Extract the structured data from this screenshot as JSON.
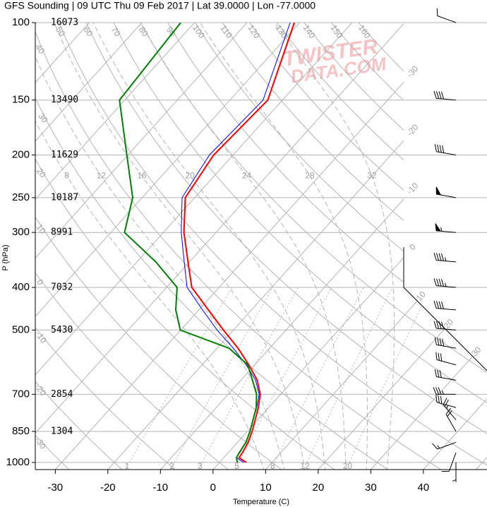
{
  "chart_data": {
    "type": "skew-t",
    "title": "GFS Sounding | 09 UTC Thu 09 Feb 2017 | Lat 39.0000 | Lon -77.0000",
    "x_label": "Temperature (C)",
    "y_label": "P (hPa)",
    "xlim": [
      -33.8,
      52.1
    ],
    "xticks": [
      -30,
      -20,
      -10,
      0,
      10,
      20,
      30,
      40
    ],
    "ylim": [
      1038,
      100
    ],
    "yticks": [
      100,
      150,
      200,
      250,
      300,
      400,
      500,
      700,
      850,
      1000
    ],
    "log_y": true,
    "heights": [
      {
        "pressure": 100,
        "height": 16073
      },
      {
        "pressure": 150,
        "height": 13490
      },
      {
        "pressure": 200,
        "height": 11629
      },
      {
        "pressure": 250,
        "height": 10187
      },
      {
        "pressure": 300,
        "height": 8991
      },
      {
        "pressure": 400,
        "height": 7032
      },
      {
        "pressure": 500,
        "height": 5430
      },
      {
        "pressure": 700,
        "height": 2854
      },
      {
        "pressure": 850,
        "height": 1304
      }
    ],
    "pressure": [
      1000,
      975,
      950,
      900,
      850,
      800,
      750,
      700,
      650,
      600,
      550,
      500,
      450,
      400,
      350,
      300,
      250,
      200,
      150,
      100
    ],
    "series": [
      {
        "color": "#0000ff",
        "values": [
          4.6,
          2.4,
          2.2,
          1.6,
          0.5,
          -0.9,
          -2.3,
          -4.1,
          -7.2,
          -11.6,
          -16.9,
          -23.1,
          -29.3,
          -36.1,
          -41.0,
          -46.6,
          -52.4,
          -54.5,
          -53.7,
          -61.8
        ]
      },
      {
        "color": "#ff0000",
        "values": [
          5.1,
          2.9,
          2.7,
          2.0,
          0.9,
          -0.5,
          -2.0,
          -3.9,
          -6.9,
          -11.1,
          -16.0,
          -21.9,
          -28.2,
          -35.2,
          -40.3,
          -46.1,
          -51.8,
          -53.7,
          -52.8,
          -61.0
        ]
      },
      {
        "color": "#008000",
        "values": [
          3.4,
          2.4,
          2.1,
          1.6,
          0.5,
          -0.9,
          -2.4,
          -4.6,
          -7.8,
          -11.3,
          -17.7,
          -30.1,
          -34.4,
          -38.0,
          -46.4,
          -57.4,
          -61.8,
          -70.2,
          -81.0,
          -82.6
        ]
      }
    ],
    "isotherms": [
      -110,
      -100,
      -90,
      -80,
      -70,
      -60,
      -50,
      -40,
      -30,
      -20,
      -10,
      0,
      10,
      20,
      30,
      40,
      50
    ],
    "isotherm_labels": [
      -30,
      -20,
      -10,
      0,
      10,
      20,
      30
    ],
    "dry_adiabats": [
      -30,
      -20,
      -10,
      0,
      10,
      20,
      30,
      40,
      50,
      60,
      70,
      80,
      90,
      100,
      110,
      120,
      130,
      140,
      150,
      160
    ],
    "mixing_ratios": [
      1,
      2,
      3,
      5,
      8,
      12,
      20
    ],
    "moist_adiabats": [
      8,
      12,
      16,
      20,
      24,
      28,
      32
    ],
    "winds": {
      "pressure": [
        100,
        150,
        200,
        250,
        300,
        350,
        400,
        450,
        500,
        550,
        600,
        650,
        700,
        750,
        800,
        850,
        900,
        950,
        1000
      ],
      "direction": [
        290,
        275,
        280,
        280,
        275,
        275,
        275,
        275,
        275,
        280,
        285,
        280,
        270,
        285,
        320,
        330,
        250,
        200,
        180
      ],
      "speed": [
        10,
        40,
        40,
        50,
        55,
        45,
        45,
        40,
        40,
        40,
        30,
        30,
        35,
        30,
        25,
        20,
        15,
        10,
        5
      ]
    },
    "watermark": [
      "TWISTER",
      "DATA.COM"
    ]
  }
}
